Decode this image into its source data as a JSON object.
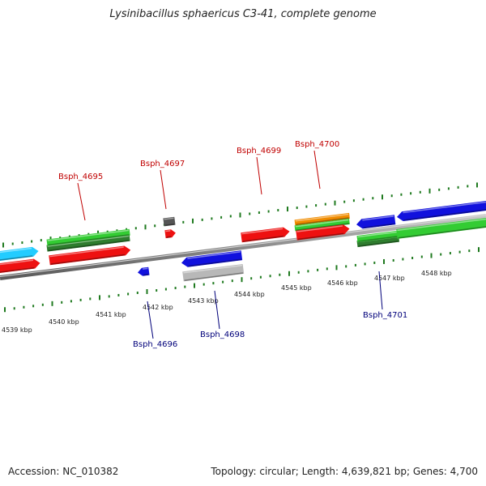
{
  "header": {
    "title": "Lysinibacillus sphaericus C3-41, complete genome"
  },
  "footer": {
    "accession": "Accession: NC_010382",
    "summary": "Topology: circular; Length: 4,639,821 bp; Genes: 4,700"
  },
  "ruler": {
    "labels": [
      "4539 kbp",
      "4540 kbp",
      "4541 kbp",
      "4542 kbp",
      "4543 kbp",
      "4544 kbp",
      "4545 kbp",
      "4546 kbp",
      "4547 kbp",
      "4548 kbp"
    ]
  },
  "genes_forward": [
    "Bsph_4695",
    "Bsph_4697",
    "Bsph_4699",
    "Bsph_4700"
  ],
  "genes_reverse": [
    "Bsph_4696",
    "Bsph_4698",
    "Bsph_4701"
  ],
  "colors": {
    "backbone": "#808080",
    "cds_forward": "#ee1111",
    "cds_reverse": "#1111dd",
    "gene_green": "#33cc33",
    "gene_dark_green": "#2e7d2e",
    "gene_orange": "#f08c00",
    "gene_cyan": "#22ccff",
    "gene_gray": "#b8b8b8",
    "gene_dark_gray": "#555555",
    "tick": "#1f7a1f",
    "label_forward": "#c00000",
    "label_reverse": "#00007a"
  }
}
